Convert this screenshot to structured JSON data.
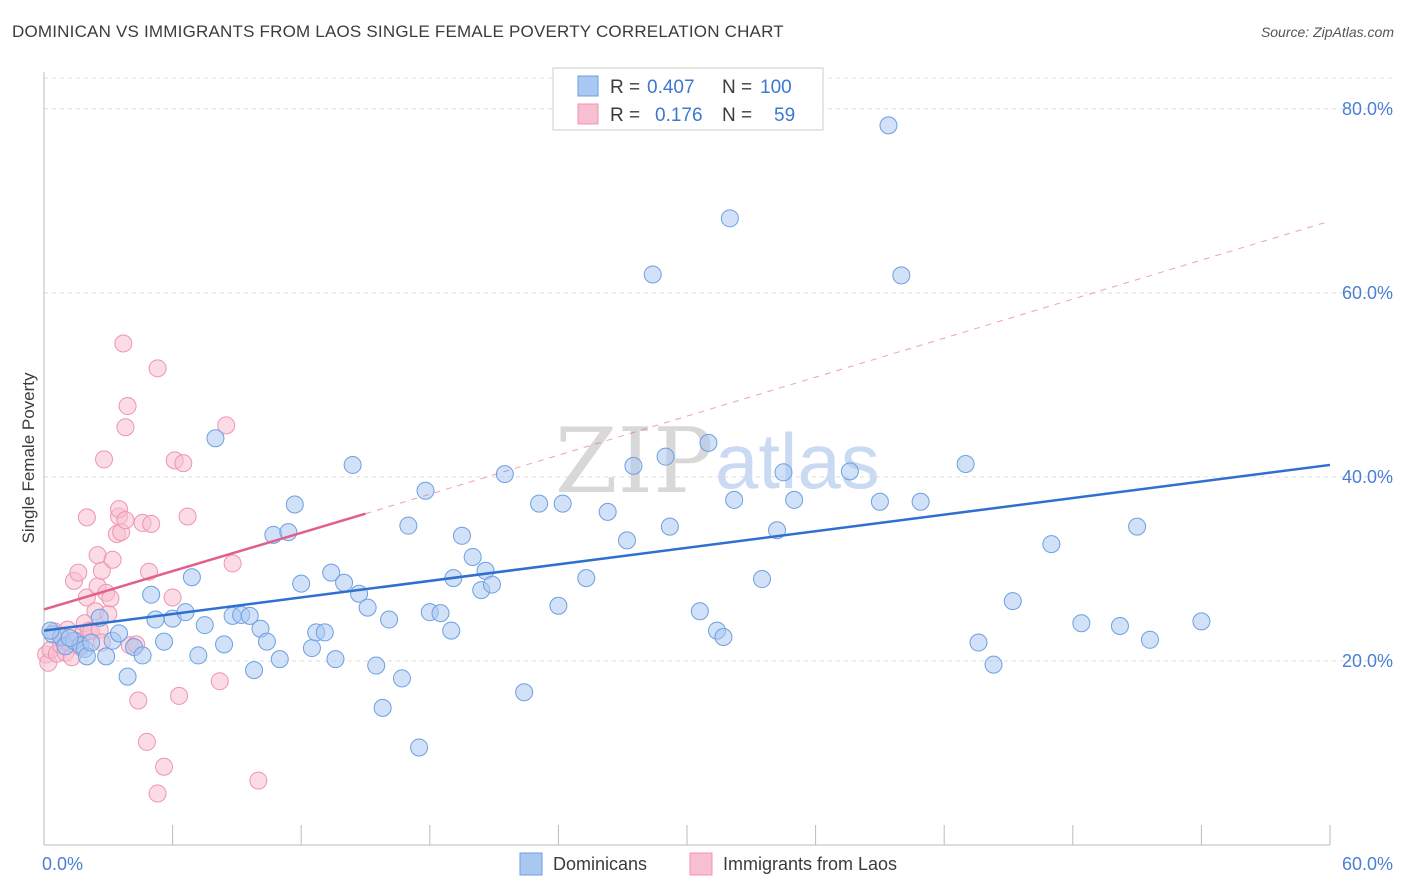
{
  "header": {
    "title": "DOMINICAN VS IMMIGRANTS FROM LAOS SINGLE FEMALE POVERTY CORRELATION CHART",
    "source": "Source: ZipAtlas.com"
  },
  "colors": {
    "blue_fill": "#a9c8f2",
    "blue_stroke": "#6e9fe0",
    "blue_line": "#2e6fd0",
    "pink_fill": "#f7bfd0",
    "pink_stroke": "#ee95b2",
    "pink_line": "#e0608a",
    "grid": "#dddddd",
    "axis_text": "#4a7fd4"
  },
  "legend": {
    "r_label": "R =",
    "n_label": "N =",
    "rows": [
      {
        "series": "Dominicans",
        "r": "0.407",
        "n": "100"
      },
      {
        "series": "Immigrants from Laos",
        "r": "0.176",
        "n": "59"
      }
    ]
  },
  "watermark": {
    "zip": "ZIP",
    "atlas": "atlas"
  },
  "chart_data": {
    "type": "scatter",
    "title": "DOMINICAN VS IMMIGRANTS FROM LAOS SINGLE FEMALE POVERTY CORRELATION CHART",
    "xlabel": "",
    "ylabel": "Single Female Poverty",
    "xlim": [
      0,
      60
    ],
    "ylim": [
      0,
      84
    ],
    "x_tick_labels": [
      {
        "value": 0,
        "label": "0.0%"
      },
      {
        "value": 60,
        "label": "60.0%"
      }
    ],
    "y_tick_labels": [
      {
        "value": 20,
        "label": "20.0%"
      },
      {
        "value": 40,
        "label": "40.0%"
      },
      {
        "value": 60,
        "label": "60.0%"
      },
      {
        "value": 80,
        "label": "80.0%"
      }
    ],
    "x_minor_ticks": [
      0,
      6,
      12,
      18,
      24,
      30,
      36,
      42,
      48,
      54,
      60
    ],
    "grid": true,
    "series": [
      {
        "name": "Dominicans",
        "color": "#a9c8f2",
        "trend": {
          "x0": 0,
          "y0": 23.3,
          "x1": 60,
          "y1": 41.3
        },
        "points": [
          [
            0.4,
            22.9
          ],
          [
            0.8,
            22.6
          ],
          [
            1.0,
            21.6
          ],
          [
            1.4,
            22.2
          ],
          [
            1.7,
            21.7
          ],
          [
            1.9,
            21.3
          ],
          [
            2.0,
            20.5
          ],
          [
            2.2,
            22.0
          ],
          [
            2.6,
            24.7
          ],
          [
            2.9,
            20.5
          ],
          [
            3.2,
            22.2
          ],
          [
            3.5,
            23.0
          ],
          [
            3.9,
            18.3
          ],
          [
            4.2,
            21.5
          ],
          [
            4.6,
            20.6
          ],
          [
            5.0,
            27.2
          ],
          [
            5.2,
            24.5
          ],
          [
            5.6,
            22.1
          ],
          [
            6.0,
            24.6
          ],
          [
            6.6,
            25.3
          ],
          [
            6.9,
            29.1
          ],
          [
            7.2,
            20.6
          ],
          [
            7.5,
            23.9
          ],
          [
            8.0,
            44.2
          ],
          [
            8.4,
            21.8
          ],
          [
            8.8,
            24.9
          ],
          [
            9.2,
            25.0
          ],
          [
            9.6,
            24.9
          ],
          [
            9.8,
            19.0
          ],
          [
            10.1,
            23.5
          ],
          [
            10.4,
            22.1
          ],
          [
            10.7,
            33.7
          ],
          [
            11.0,
            20.2
          ],
          [
            11.4,
            34.0
          ],
          [
            11.7,
            37.0
          ],
          [
            12.0,
            28.4
          ],
          [
            12.5,
            21.4
          ],
          [
            12.7,
            23.1
          ],
          [
            13.1,
            23.1
          ],
          [
            13.6,
            20.2
          ],
          [
            13.4,
            29.6
          ],
          [
            14.0,
            28.5
          ],
          [
            14.4,
            41.3
          ],
          [
            14.7,
            27.3
          ],
          [
            15.1,
            25.8
          ],
          [
            15.5,
            19.5
          ],
          [
            15.8,
            14.9
          ],
          [
            16.1,
            24.5
          ],
          [
            16.7,
            18.1
          ],
          [
            17.0,
            34.7
          ],
          [
            17.5,
            10.6
          ],
          [
            17.8,
            38.5
          ],
          [
            18.0,
            25.3
          ],
          [
            18.5,
            25.2
          ],
          [
            19.0,
            23.3
          ],
          [
            19.1,
            29.0
          ],
          [
            19.5,
            33.6
          ],
          [
            20.0,
            31.3
          ],
          [
            20.4,
            27.7
          ],
          [
            20.6,
            29.8
          ],
          [
            20.9,
            28.3
          ],
          [
            21.5,
            40.3
          ],
          [
            22.4,
            16.6
          ],
          [
            23.1,
            37.1
          ],
          [
            24.0,
            26.0
          ],
          [
            24.2,
            37.1
          ],
          [
            25.3,
            29.0
          ],
          [
            26.3,
            36.2
          ],
          [
            27.2,
            33.1
          ],
          [
            27.5,
            41.2
          ],
          [
            28.4,
            62.0
          ],
          [
            29.0,
            42.2
          ],
          [
            29.2,
            34.6
          ],
          [
            30.6,
            25.4
          ],
          [
            31.0,
            43.7
          ],
          [
            31.4,
            23.3
          ],
          [
            31.7,
            22.6
          ],
          [
            32.0,
            68.1
          ],
          [
            32.2,
            37.5
          ],
          [
            33.5,
            28.9
          ],
          [
            34.2,
            34.2
          ],
          [
            34.5,
            40.5
          ],
          [
            35.0,
            37.5
          ],
          [
            37.6,
            40.6
          ],
          [
            39.0,
            37.3
          ],
          [
            39.4,
            78.2
          ],
          [
            40.0,
            61.9
          ],
          [
            40.9,
            37.3
          ],
          [
            43.0,
            41.4
          ],
          [
            43.6,
            22.0
          ],
          [
            44.3,
            19.6
          ],
          [
            45.2,
            26.5
          ],
          [
            47.0,
            32.7
          ],
          [
            48.4,
            24.1
          ],
          [
            50.2,
            23.8
          ],
          [
            51.0,
            34.6
          ],
          [
            51.6,
            22.3
          ],
          [
            54.0,
            24.3
          ],
          [
            0.3,
            23.3
          ],
          [
            1.2,
            22.5
          ]
        ]
      },
      {
        "name": "Immigrants from Laos",
        "color": "#f7bfd0",
        "trend": {
          "x0": 0,
          "y0": 25.6,
          "x1": 15,
          "y1": 36.0
        },
        "trend_extension": {
          "x0": 15,
          "y0": 36.0,
          "x1": 60,
          "y1": 67.8
        },
        "points": [
          [
            0.1,
            20.7
          ],
          [
            0.2,
            19.8
          ],
          [
            0.3,
            21.2
          ],
          [
            0.5,
            23.2
          ],
          [
            0.6,
            20.8
          ],
          [
            0.8,
            21.7
          ],
          [
            0.9,
            22.2
          ],
          [
            1.0,
            20.9
          ],
          [
            1.1,
            23.4
          ],
          [
            1.2,
            21.9
          ],
          [
            1.3,
            20.4
          ],
          [
            1.4,
            28.7
          ],
          [
            1.5,
            22.2
          ],
          [
            1.6,
            29.6
          ],
          [
            1.7,
            21.5
          ],
          [
            1.8,
            22.9
          ],
          [
            1.9,
            24.1
          ],
          [
            2.0,
            26.9
          ],
          [
            2.0,
            35.6
          ],
          [
            2.1,
            23.3
          ],
          [
            2.2,
            23.2
          ],
          [
            2.4,
            25.4
          ],
          [
            2.5,
            28.1
          ],
          [
            2.6,
            23.4
          ],
          [
            2.5,
            31.5
          ],
          [
            2.7,
            22.0
          ],
          [
            2.7,
            29.8
          ],
          [
            2.8,
            41.9
          ],
          [
            2.9,
            27.4
          ],
          [
            3.0,
            25.1
          ],
          [
            3.1,
            26.8
          ],
          [
            3.2,
            31.0
          ],
          [
            3.4,
            33.8
          ],
          [
            3.5,
            35.7
          ],
          [
            3.5,
            36.5
          ],
          [
            3.6,
            34.0
          ],
          [
            3.7,
            54.5
          ],
          [
            3.8,
            45.4
          ],
          [
            3.8,
            35.3
          ],
          [
            3.9,
            47.7
          ],
          [
            4.0,
            21.7
          ],
          [
            4.3,
            21.8
          ],
          [
            4.4,
            15.7
          ],
          [
            4.6,
            35.0
          ],
          [
            4.8,
            11.2
          ],
          [
            4.9,
            29.7
          ],
          [
            5.0,
            34.9
          ],
          [
            5.3,
            5.6
          ],
          [
            5.3,
            51.8
          ],
          [
            5.6,
            8.5
          ],
          [
            6.0,
            26.9
          ],
          [
            6.1,
            41.8
          ],
          [
            6.3,
            16.2
          ],
          [
            6.5,
            41.5
          ],
          [
            6.7,
            35.7
          ],
          [
            8.2,
            17.8
          ],
          [
            8.5,
            45.6
          ],
          [
            8.8,
            30.6
          ],
          [
            10.0,
            7.0
          ]
        ]
      }
    ]
  }
}
